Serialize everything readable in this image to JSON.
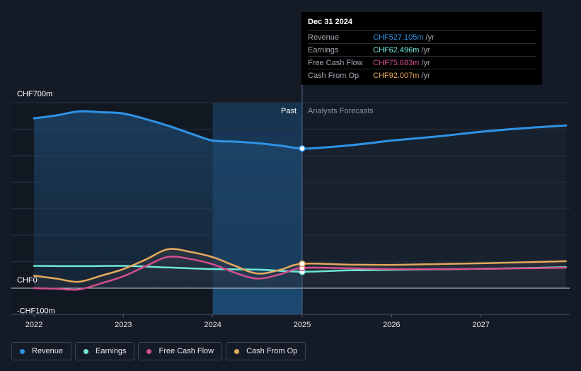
{
  "chart_data": {
    "type": "line",
    "y_axis_labels": [
      {
        "label": "CHF700m",
        "value": 700
      },
      {
        "label": "CHF0",
        "value": 0
      },
      {
        "label": "-CHF100m",
        "value": -100
      }
    ],
    "ylim": [
      -100,
      700
    ],
    "xlim": [
      2021.8,
      2027.95
    ],
    "x_ticks": [
      2022,
      2023,
      2024,
      2025,
      2026,
      2027
    ],
    "past_label": "Past",
    "forecast_label": "Analysts Forecasts",
    "past_end": 2025.0,
    "highlight_start": 2024.0,
    "grid": true,
    "series": [
      {
        "name": "Revenue",
        "color": "#2e93e6",
        "points": [
          [
            2022.0,
            641
          ],
          [
            2022.25,
            652
          ],
          [
            2022.5,
            667
          ],
          [
            2022.75,
            664
          ],
          [
            2023.0,
            659
          ],
          [
            2023.25,
            638
          ],
          [
            2023.5,
            613
          ],
          [
            2023.75,
            584
          ],
          [
            2024.0,
            557
          ],
          [
            2024.25,
            553
          ],
          [
            2024.5,
            547
          ],
          [
            2024.75,
            538
          ],
          [
            2025.0,
            527
          ],
          [
            2025.25,
            531
          ],
          [
            2025.5,
            538
          ],
          [
            2025.75,
            547
          ],
          [
            2026.0,
            557
          ],
          [
            2026.5,
            572
          ],
          [
            2027.0,
            590
          ],
          [
            2027.5,
            604
          ],
          [
            2027.95,
            614
          ]
        ]
      },
      {
        "name": "Earnings",
        "color": "#6ee7d8",
        "points": [
          [
            2022.0,
            84
          ],
          [
            2022.5,
            83
          ],
          [
            2023.0,
            84
          ],
          [
            2023.5,
            78
          ],
          [
            2024.0,
            72
          ],
          [
            2024.5,
            70
          ],
          [
            2025.0,
            62
          ],
          [
            2025.5,
            67
          ],
          [
            2026.0,
            69
          ],
          [
            2026.5,
            71
          ],
          [
            2027.0,
            73
          ],
          [
            2027.5,
            76
          ],
          [
            2027.95,
            79
          ]
        ]
      },
      {
        "name": "Free Cash Flow",
        "color": "#d14f8e",
        "points": [
          [
            2022.0,
            0
          ],
          [
            2022.25,
            -2
          ],
          [
            2022.5,
            -5
          ],
          [
            2022.75,
            18
          ],
          [
            2023.0,
            45
          ],
          [
            2023.25,
            83
          ],
          [
            2023.5,
            118
          ],
          [
            2023.75,
            110
          ],
          [
            2024.0,
            90
          ],
          [
            2024.25,
            58
          ],
          [
            2024.5,
            36
          ],
          [
            2024.75,
            52
          ],
          [
            2025.0,
            76
          ],
          [
            2025.5,
            75
          ],
          [
            2026.0,
            72
          ],
          [
            2026.5,
            72
          ],
          [
            2027.0,
            73
          ],
          [
            2027.5,
            75
          ],
          [
            2027.95,
            77
          ]
        ]
      },
      {
        "name": "Cash From Op",
        "color": "#e5a95b",
        "points": [
          [
            2022.0,
            47
          ],
          [
            2022.25,
            36
          ],
          [
            2022.5,
            24
          ],
          [
            2022.75,
            47
          ],
          [
            2023.0,
            72
          ],
          [
            2023.25,
            108
          ],
          [
            2023.5,
            147
          ],
          [
            2023.75,
            137
          ],
          [
            2024.0,
            117
          ],
          [
            2024.25,
            84
          ],
          [
            2024.5,
            55
          ],
          [
            2024.75,
            69
          ],
          [
            2025.0,
            92
          ],
          [
            2025.5,
            89
          ],
          [
            2026.0,
            88
          ],
          [
            2026.5,
            91
          ],
          [
            2027.0,
            94
          ],
          [
            2027.5,
            98
          ],
          [
            2027.95,
            102
          ]
        ]
      }
    ],
    "tooltip": {
      "date": "Dec 31 2024",
      "unit": "/yr",
      "rows": [
        {
          "label": "Revenue",
          "value": "CHF527.105m",
          "color": "#2e93e6"
        },
        {
          "label": "Earnings",
          "value": "CHF62.496m",
          "color": "#6ee7d8"
        },
        {
          "label": "Free Cash Flow",
          "value": "CHF75.683m",
          "color": "#d14f8e"
        },
        {
          "label": "Cash From Op",
          "value": "CHF92.007m",
          "color": "#e5a95b"
        }
      ]
    }
  },
  "legend": [
    {
      "label": "Revenue",
      "color": "#2e93e6"
    },
    {
      "label": "Earnings",
      "color": "#6ee7d8"
    },
    {
      "label": "Free Cash Flow",
      "color": "#d14f8e"
    },
    {
      "label": "Cash From Op",
      "color": "#e5a95b"
    }
  ]
}
